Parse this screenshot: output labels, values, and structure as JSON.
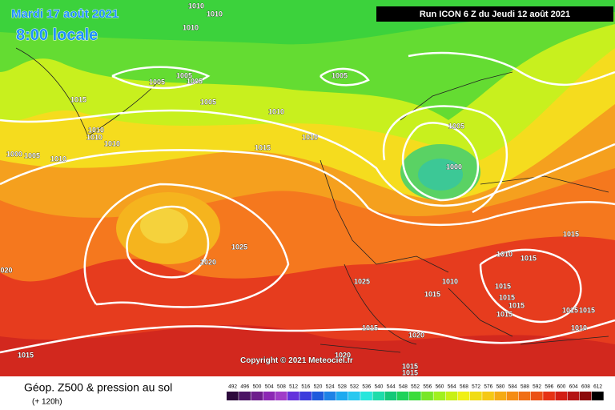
{
  "header": {
    "date": "Mardi 17 août 2021",
    "time": "8:00 locale",
    "run": "Run ICON 6 Z du Jeudi 12 août 2021",
    "copyright": "Copyright © 2021 Meteociel.fr"
  },
  "footer": {
    "title": "Géop. Z500 & pression au sol",
    "lead": "(+ 120h)"
  },
  "colorbar": {
    "values": [
      492,
      496,
      500,
      504,
      508,
      512,
      516,
      520,
      524,
      528,
      532,
      536,
      540,
      544,
      548,
      552,
      556,
      560,
      564,
      568,
      572,
      576,
      580,
      584,
      588,
      592,
      596,
      600,
      604,
      608,
      612
    ],
    "colors": [
      "#2d0a3c",
      "#4b1464",
      "#6e1e8c",
      "#8c28b4",
      "#a03cc8",
      "#6432dc",
      "#3c3cdc",
      "#1e5adc",
      "#1e82e6",
      "#1eaaf0",
      "#28c8f0",
      "#28e6dc",
      "#1edcaa",
      "#14c878",
      "#1ed25a",
      "#3cdc3c",
      "#78e628",
      "#a0f01e",
      "#c8f014",
      "#f0f014",
      "#f0dc14",
      "#f5c814",
      "#f5aa14",
      "#f58c14",
      "#f06e14",
      "#eb5014",
      "#e63214",
      "#d21e14",
      "#b41414",
      "#8c0a0a",
      "#000000"
    ]
  },
  "isobar_labels": [
    "1010",
    "1010",
    "1010",
    "1005",
    "1005",
    "1005",
    "1005",
    "1005",
    "1015",
    "1010",
    "1010",
    "1010",
    "1010",
    "1010",
    "1015",
    "1005",
    "1000",
    "1000",
    "1005",
    "1010",
    "1025",
    "1020",
    "020",
    "1025",
    "1010",
    "1015",
    "1015",
    "1010",
    "1015",
    "1015",
    "1015",
    "1015",
    "1015",
    "1015",
    "1015",
    "1010",
    "1015",
    "1020",
    "1015",
    "1020",
    "1015",
    "1015"
  ]
}
